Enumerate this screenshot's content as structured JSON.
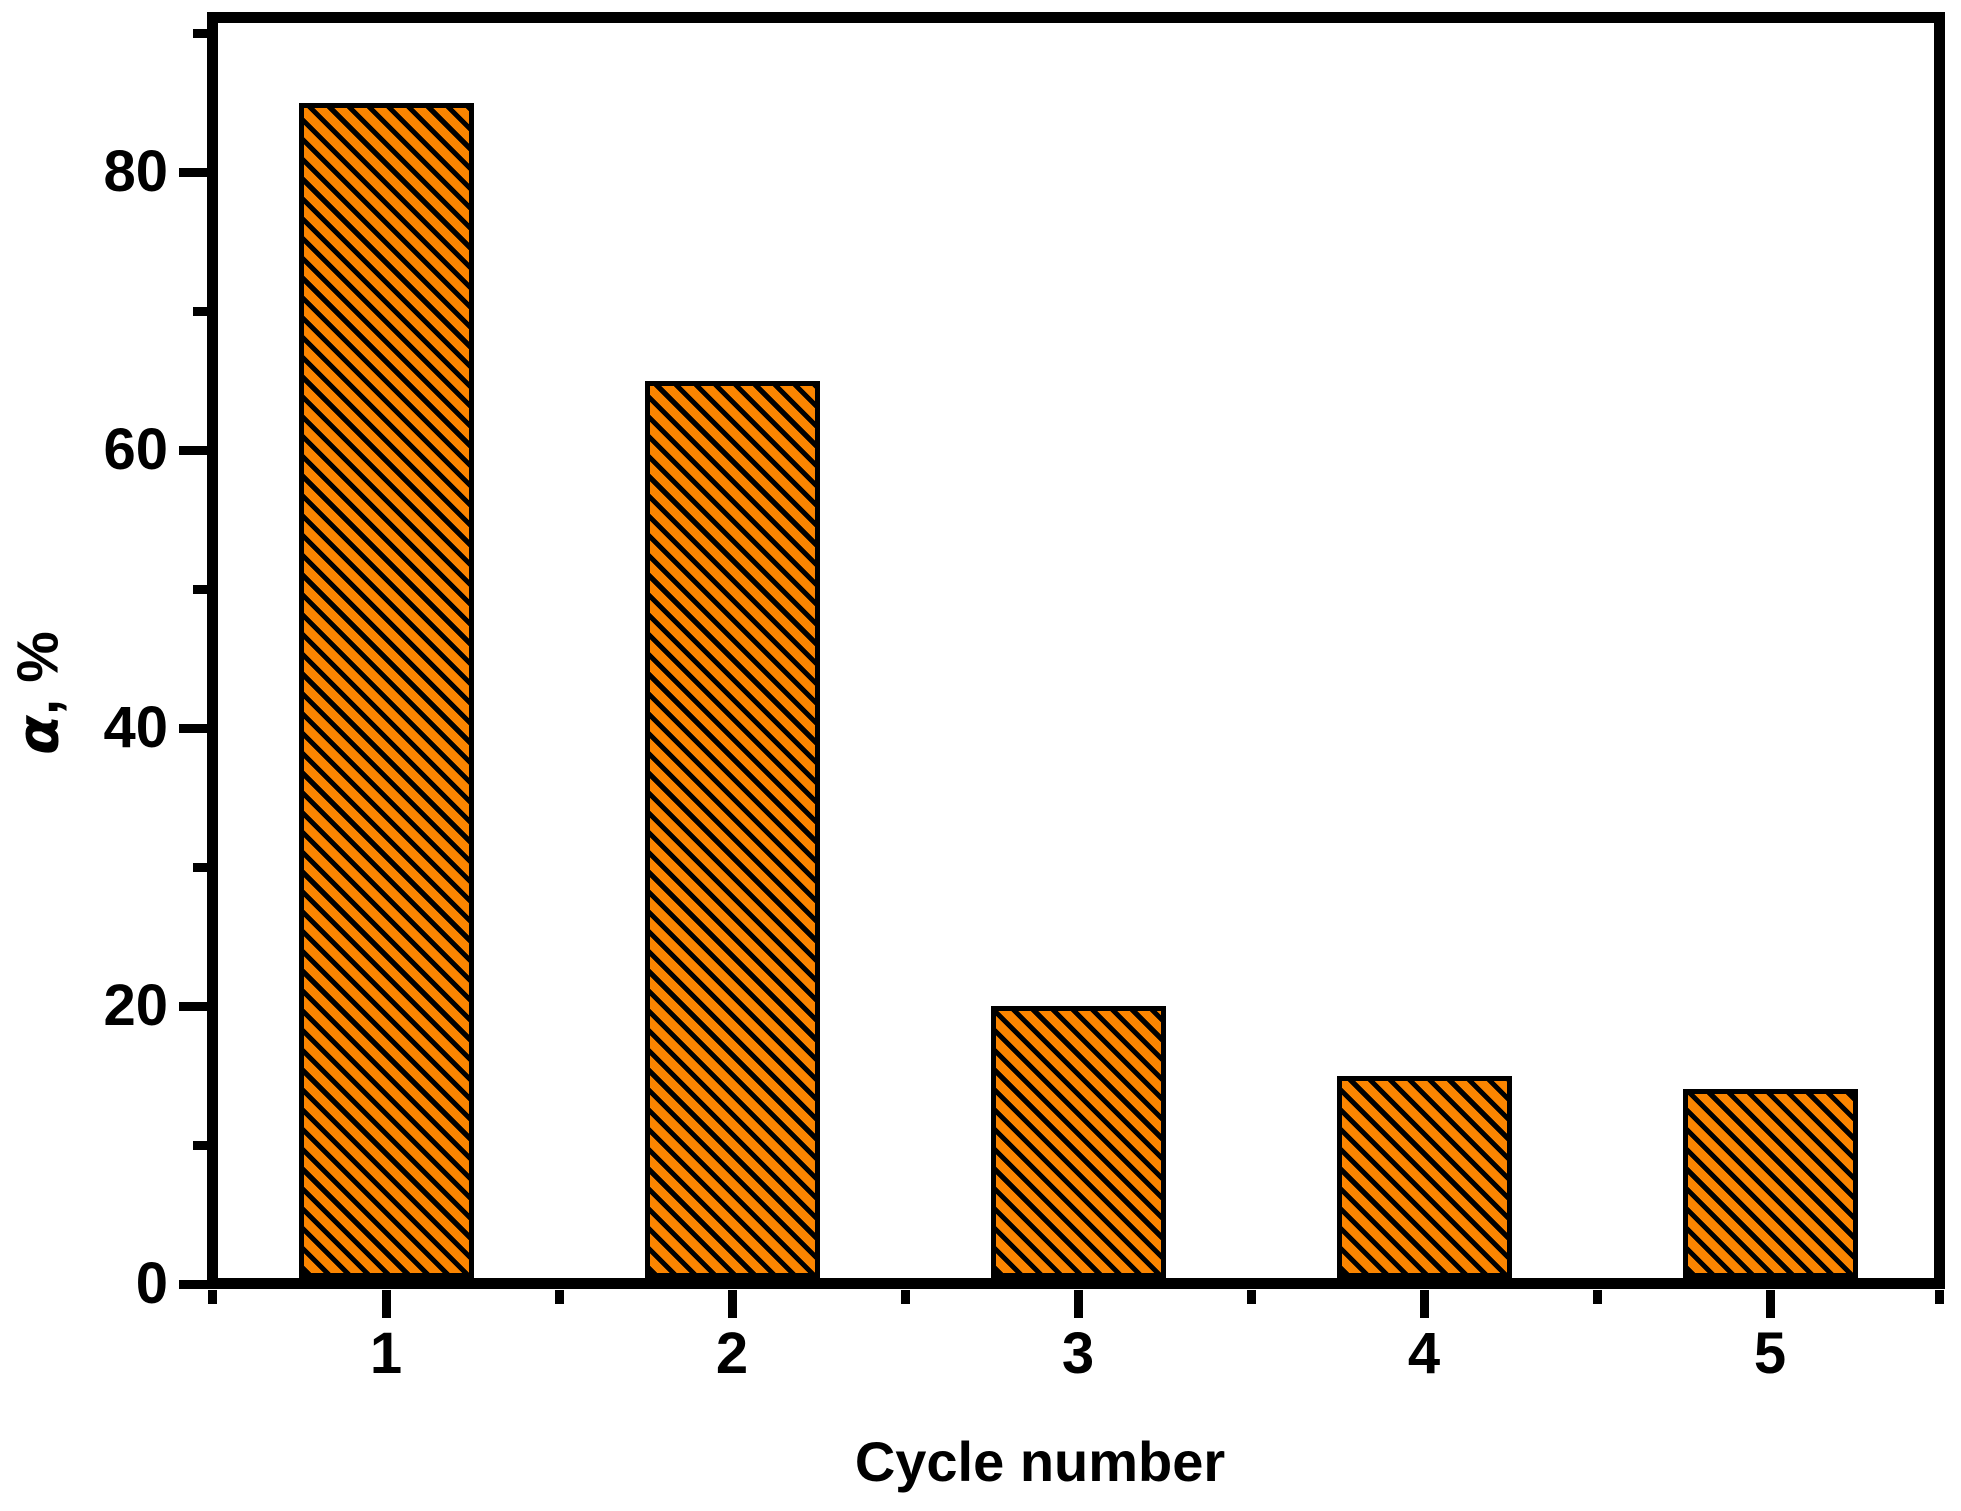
{
  "figure": {
    "background": "#FFFFFF",
    "frame_color": "#000000",
    "text_color": "#000000"
  },
  "chart_data": {
    "type": "bar",
    "title": "",
    "categories": [
      "1",
      "2",
      "3",
      "4",
      "5"
    ],
    "values": [
      85,
      65,
      20,
      15,
      14
    ],
    "xlabel": "Cycle number",
    "ylabel": "α, %",
    "ylabel_alpha": "α",
    "ylabel_rest": ", %",
    "ylim": [
      0,
      90
    ],
    "yticks_major": [
      0,
      20,
      40,
      60,
      80
    ],
    "yticks_minor": [
      10,
      30,
      50,
      70,
      90
    ],
    "grid": false,
    "legend": false,
    "bar_fill": "#FB8500",
    "bar_border": "#000000",
    "bar_hatch": "diagonal-down-black"
  }
}
